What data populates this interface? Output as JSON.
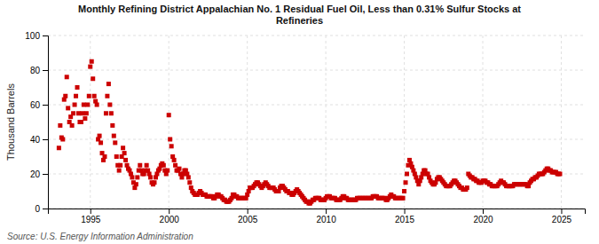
{
  "chart_data": {
    "type": "scatter",
    "title": "Monthly Refining District Appalachian No. 1 Residual Fuel Oil, Less than 0.31% Sulfur Stocks at\nRefineries",
    "ylabel": "Thousand Barrels",
    "source": "Source: U.S. Energy Information Administration",
    "color": "#cc0000",
    "marker": "square",
    "grid": true,
    "xlim": [
      1992.3,
      2026.5
    ],
    "xticks": [
      1995,
      2000,
      2005,
      2010,
      2015,
      2020,
      2025
    ],
    "ylim": [
      0,
      100
    ],
    "yticks": [
      0,
      20,
      40,
      60,
      80,
      100
    ],
    "x": [
      1993.0,
      1993.083,
      1993.167,
      1993.25,
      1993.333,
      1993.417,
      1993.5,
      1993.583,
      1993.667,
      1993.75,
      1993.833,
      1993.917,
      1994.0,
      1994.083,
      1994.167,
      1994.25,
      1994.333,
      1994.417,
      1994.5,
      1994.583,
      1994.667,
      1994.75,
      1994.833,
      1994.917,
      1995.0,
      1995.083,
      1995.167,
      1995.25,
      1995.333,
      1995.417,
      1995.5,
      1995.583,
      1995.667,
      1995.75,
      1995.833,
      1995.917,
      1996.0,
      1996.083,
      1996.167,
      1996.25,
      1996.333,
      1996.417,
      1996.5,
      1996.583,
      1996.667,
      1996.75,
      1996.833,
      1996.917,
      1997.0,
      1997.083,
      1997.167,
      1997.25,
      1997.333,
      1997.417,
      1997.5,
      1997.583,
      1997.667,
      1997.75,
      1997.833,
      1997.917,
      1998.0,
      1998.083,
      1998.167,
      1998.25,
      1998.333,
      1998.417,
      1998.5,
      1998.583,
      1998.667,
      1998.75,
      1998.833,
      1998.917,
      1999.0,
      1999.083,
      1999.167,
      1999.25,
      1999.333,
      1999.417,
      1999.5,
      1999.583,
      1999.667,
      1999.75,
      1999.833,
      1999.917,
      2000.0,
      2000.083,
      2000.167,
      2000.25,
      2000.333,
      2000.417,
      2000.5,
      2000.583,
      2000.667,
      2000.75,
      2000.833,
      2000.917,
      2001.0,
      2001.083,
      2001.167,
      2001.25,
      2001.333,
      2001.417,
      2001.5,
      2001.583,
      2001.667,
      2001.75,
      2001.833,
      2001.917,
      2002.0,
      2002.083,
      2002.167,
      2002.25,
      2002.333,
      2002.417,
      2002.5,
      2002.583,
      2002.667,
      2002.75,
      2002.833,
      2002.917,
      2003.0,
      2003.083,
      2003.167,
      2003.25,
      2003.333,
      2003.417,
      2003.5,
      2003.583,
      2003.667,
      2003.75,
      2003.833,
      2003.917,
      2004.0,
      2004.083,
      2004.167,
      2004.25,
      2004.333,
      2004.417,
      2004.5,
      2004.583,
      2004.667,
      2004.75,
      2004.833,
      2004.917,
      2005.0,
      2005.083,
      2005.167,
      2005.25,
      2005.333,
      2005.417,
      2005.5,
      2005.583,
      2005.667,
      2005.75,
      2005.833,
      2005.917,
      2006.0,
      2006.083,
      2006.167,
      2006.25,
      2006.333,
      2006.417,
      2006.5,
      2006.583,
      2006.667,
      2006.75,
      2006.833,
      2006.917,
      2007.0,
      2007.083,
      2007.167,
      2007.25,
      2007.333,
      2007.417,
      2007.5,
      2007.583,
      2007.667,
      2007.75,
      2007.833,
      2007.917,
      2008.0,
      2008.083,
      2008.167,
      2008.25,
      2008.333,
      2008.417,
      2008.5,
      2008.583,
      2008.667,
      2008.75,
      2008.833,
      2008.917,
      2009.0,
      2009.083,
      2009.167,
      2009.25,
      2009.333,
      2009.417,
      2009.5,
      2009.583,
      2009.667,
      2009.75,
      2009.833,
      2009.917,
      2010.0,
      2010.083,
      2010.167,
      2010.25,
      2010.333,
      2010.417,
      2010.5,
      2010.583,
      2010.667,
      2010.75,
      2010.833,
      2010.917,
      2011.0,
      2011.083,
      2011.167,
      2011.25,
      2011.333,
      2011.417,
      2011.5,
      2011.583,
      2011.667,
      2011.75,
      2011.833,
      2011.917,
      2012.0,
      2012.083,
      2012.167,
      2012.25,
      2012.333,
      2012.417,
      2012.5,
      2012.583,
      2012.667,
      2012.75,
      2012.833,
      2012.917,
      2013.0,
      2013.083,
      2013.167,
      2013.25,
      2013.333,
      2013.417,
      2013.5,
      2013.583,
      2013.667,
      2013.75,
      2013.833,
      2013.917,
      2014.0,
      2014.083,
      2014.167,
      2014.25,
      2014.333,
      2014.417,
      2014.5,
      2014.583,
      2014.667,
      2014.75,
      2014.833,
      2014.917,
      2015.0,
      2015.083,
      2015.167,
      2015.25,
      2015.333,
      2015.417,
      2015.5,
      2015.583,
      2015.667,
      2015.75,
      2015.833,
      2015.917,
      2016.0,
      2016.083,
      2016.167,
      2016.25,
      2016.333,
      2016.417,
      2016.5,
      2016.583,
      2016.667,
      2016.75,
      2016.833,
      2016.917,
      2017.0,
      2017.083,
      2017.167,
      2017.25,
      2017.333,
      2017.417,
      2017.5,
      2017.583,
      2017.667,
      2017.75,
      2017.833,
      2017.917,
      2018.0,
      2018.083,
      2018.167,
      2018.25,
      2018.333,
      2018.417,
      2018.5,
      2018.583,
      2018.667,
      2018.75,
      2018.833,
      2018.917,
      2019.0,
      2019.083,
      2019.167,
      2019.25,
      2019.333,
      2019.417,
      2019.5,
      2019.583,
      2019.667,
      2019.75,
      2019.833,
      2019.917,
      2020.0,
      2020.083,
      2020.167,
      2020.25,
      2020.333,
      2020.417,
      2020.5,
      2020.583,
      2020.667,
      2020.75,
      2020.833,
      2020.917,
      2021.0,
      2021.083,
      2021.167,
      2021.25,
      2021.333,
      2021.417,
      2021.5,
      2021.583,
      2021.667,
      2021.75,
      2021.833,
      2021.917,
      2022.0,
      2022.083,
      2022.167,
      2022.25,
      2022.333,
      2022.417,
      2022.5,
      2022.583,
      2022.667,
      2022.75,
      2022.833,
      2022.917,
      2023.0,
      2023.083,
      2023.167,
      2023.25,
      2023.333,
      2023.417,
      2023.5,
      2023.583,
      2023.667,
      2023.75,
      2023.833,
      2023.917,
      2024.0,
      2024.083,
      2024.167,
      2024.25,
      2024.333,
      2024.417,
      2024.5,
      2024.583,
      2024.667,
      2024.75,
      2024.833,
      2024.917
    ],
    "values": [
      35,
      48,
      41,
      40,
      63,
      65,
      76,
      58,
      50,
      53,
      48,
      55,
      60,
      65,
      70,
      55,
      50,
      50,
      55,
      60,
      52,
      55,
      60,
      65,
      82,
      85,
      75,
      65,
      62,
      60,
      40,
      42,
      38,
      32,
      28,
      30,
      55,
      65,
      72,
      60,
      55,
      48,
      42,
      38,
      30,
      25,
      22,
      25,
      30,
      35,
      32,
      28,
      25,
      23,
      22,
      20,
      18,
      15,
      12,
      14,
      18,
      22,
      25,
      22,
      20,
      20,
      22,
      25,
      22,
      20,
      18,
      15,
      14,
      15,
      18,
      20,
      22,
      23,
      25,
      26,
      25,
      22,
      20,
      22,
      54,
      40,
      36,
      30,
      28,
      25,
      22,
      22,
      23,
      20,
      18,
      20,
      22,
      22,
      20,
      18,
      15,
      12,
      10,
      9,
      8,
      8,
      8,
      9,
      10,
      9,
      8,
      8,
      8,
      7,
      7,
      7,
      7,
      7,
      6,
      6,
      7,
      8,
      8,
      7,
      7,
      6,
      5,
      5,
      4,
      4,
      4,
      5,
      6,
      8,
      8,
      7,
      7,
      6,
      6,
      6,
      6,
      6,
      6,
      6,
      8,
      10,
      12,
      12,
      12,
      13,
      14,
      15,
      15,
      14,
      13,
      12,
      13,
      14,
      15,
      14,
      13,
      12,
      12,
      12,
      12,
      11,
      10,
      10,
      10,
      12,
      13,
      13,
      12,
      11,
      10,
      10,
      9,
      9,
      8,
      8,
      9,
      10,
      11,
      10,
      9,
      8,
      7,
      6,
      5,
      4,
      4,
      3,
      3,
      4,
      5,
      5,
      6,
      6,
      6,
      6,
      5,
      5,
      5,
      5,
      6,
      7,
      7,
      7,
      6,
      6,
      6,
      6,
      5,
      5,
      5,
      5,
      6,
      7,
      7,
      6,
      6,
      5,
      5,
      5,
      5,
      5,
      5,
      5,
      6,
      6,
      6,
      6,
      6,
      6,
      6,
      6,
      6,
      6,
      6,
      6,
      7,
      7,
      7,
      7,
      6,
      6,
      6,
      6,
      6,
      6,
      5,
      5,
      6,
      7,
      8,
      7,
      7,
      6,
      6,
      6,
      6,
      6,
      6,
      6,
      10,
      15,
      20,
      25,
      28,
      26,
      24,
      22,
      20,
      18,
      16,
      14,
      16,
      18,
      20,
      22,
      22,
      20,
      20,
      18,
      16,
      15,
      14,
      14,
      15,
      17,
      18,
      18,
      17,
      16,
      15,
      14,
      13,
      13,
      13,
      13,
      14,
      15,
      16,
      16,
      15,
      14,
      13,
      12,
      12,
      11,
      11,
      11,
      12,
      20,
      19,
      18,
      18,
      17,
      17,
      16,
      16,
      15,
      15,
      15,
      16,
      16,
      16,
      15,
      15,
      14,
      14,
      13,
      13,
      13,
      13,
      13,
      14,
      15,
      16,
      15,
      15,
      14,
      13,
      13,
      13,
      13,
      13,
      13,
      14,
      14,
      14,
      14,
      14,
      14,
      14,
      14,
      14,
      14,
      13,
      13,
      15,
      16,
      17,
      17,
      18,
      18,
      19,
      20,
      20,
      20,
      20,
      21,
      22,
      23,
      23,
      22,
      22,
      21,
      21,
      21,
      21,
      20,
      20,
      20
    ]
  }
}
